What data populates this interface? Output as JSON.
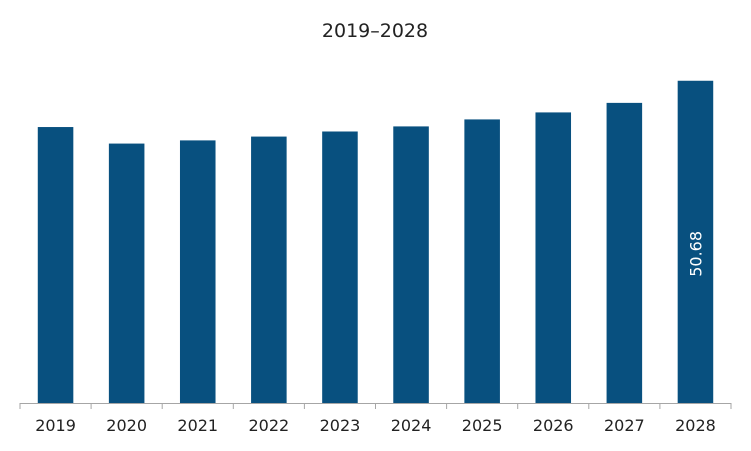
{
  "chart_data": {
    "type": "bar",
    "title": "2019–2028",
    "categories": [
      "2019",
      "2020",
      "2021",
      "2022",
      "2023",
      "2024",
      "2025",
      "2026",
      "2027",
      "2028"
    ],
    "values": [
      43.4,
      40.8,
      41.3,
      41.9,
      42.7,
      43.5,
      44.6,
      45.7,
      47.2,
      50.68
    ],
    "data_labels": [
      "",
      "",
      "",
      "",
      "",
      "",
      "",
      "",
      "",
      "50.68"
    ],
    "ylim": [
      0,
      53
    ],
    "grid": false,
    "bar_color": "#08507f"
  }
}
